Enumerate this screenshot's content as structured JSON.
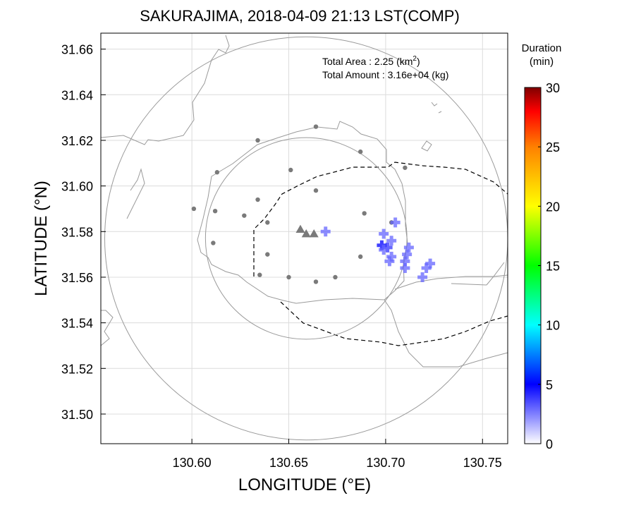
{
  "title": "SAKURAJIMA, 2018-04-09 21:13 LST(COMP)",
  "info": {
    "area_label": "Total Area   : 2.25 (km",
    "area_sup": "2",
    "area_close": ")",
    "amount_label": "Total Amount : 3.16e+04 (kg)"
  },
  "colorbar": {
    "title_line1": "Duration",
    "title_line2": "(min)",
    "min": 0,
    "max": 30,
    "ticks": [
      "0",
      "5",
      "10",
      "15",
      "20",
      "25",
      "30"
    ],
    "colors": [
      "#ffffff",
      "#0000ff",
      "#00ffff",
      "#00ff00",
      "#ffff00",
      "#ff8000",
      "#ff0000",
      "#800000"
    ]
  },
  "chart_data": {
    "type": "scatter",
    "title": "SAKURAJIMA, 2018-04-09 21:13 LST(COMP)",
    "xlabel": "LONGITUDE (°E)",
    "ylabel": "LATITUDE (°N)",
    "xlim": [
      130.553,
      130.763
    ],
    "ylim": [
      31.487,
      31.667
    ],
    "xticks": [
      "130.60",
      "130.65",
      "130.70",
      "130.75"
    ],
    "yticks": [
      "31.50",
      "31.52",
      "31.54",
      "31.56",
      "31.58",
      "31.60",
      "31.62",
      "31.64",
      "31.66"
    ],
    "grid": true,
    "range_circles": [
      {
        "center": [
          130.659,
          31.577
        ],
        "radius_lon": 0.104
      },
      {
        "center": [
          130.659,
          31.577
        ],
        "radius_lon": 0.052
      }
    ],
    "vents": [
      [
        130.656,
        31.581
      ],
      [
        130.659,
        31.579
      ],
      [
        130.663,
        31.579
      ]
    ],
    "stations": [
      [
        130.664,
        31.626
      ],
      [
        130.634,
        31.62
      ],
      [
        130.687,
        31.615
      ],
      [
        130.613,
        31.606
      ],
      [
        130.651,
        31.607
      ],
      [
        130.71,
        31.608
      ],
      [
        130.664,
        31.598
      ],
      [
        130.601,
        31.59
      ],
      [
        130.612,
        31.589
      ],
      [
        130.634,
        31.594
      ],
      [
        130.689,
        31.588
      ],
      [
        130.627,
        31.587
      ],
      [
        130.639,
        31.584
      ],
      [
        130.703,
        31.584
      ],
      [
        130.611,
        31.575
      ],
      [
        130.639,
        31.57
      ],
      [
        130.687,
        31.569
      ],
      [
        130.635,
        31.561
      ],
      [
        130.65,
        31.56
      ],
      [
        130.674,
        31.56
      ],
      [
        130.664,
        31.558
      ]
    ],
    "deposit_marks": [
      {
        "lon": 130.669,
        "lat": 31.58,
        "duration": 3
      },
      {
        "lon": 130.705,
        "lat": 31.584,
        "duration": 3
      },
      {
        "lon": 130.699,
        "lat": 31.579,
        "duration": 3
      },
      {
        "lon": 130.703,
        "lat": 31.576,
        "duration": 3
      },
      {
        "lon": 130.698,
        "lat": 31.574,
        "duration": 5
      },
      {
        "lon": 130.701,
        "lat": 31.573,
        "duration": 4
      },
      {
        "lon": 130.699,
        "lat": 31.572,
        "duration": 3
      },
      {
        "lon": 130.703,
        "lat": 31.569,
        "duration": 3
      },
      {
        "lon": 130.702,
        "lat": 31.567,
        "duration": 3
      },
      {
        "lon": 130.712,
        "lat": 31.573,
        "duration": 3
      },
      {
        "lon": 130.711,
        "lat": 31.57,
        "duration": 3
      },
      {
        "lon": 130.71,
        "lat": 31.567,
        "duration": 3
      },
      {
        "lon": 130.71,
        "lat": 31.564,
        "duration": 3
      },
      {
        "lon": 130.723,
        "lat": 31.566,
        "duration": 3
      },
      {
        "lon": 130.721,
        "lat": 31.564,
        "duration": 3
      },
      {
        "lon": 130.719,
        "lat": 31.56,
        "duration": 3
      }
    ]
  }
}
